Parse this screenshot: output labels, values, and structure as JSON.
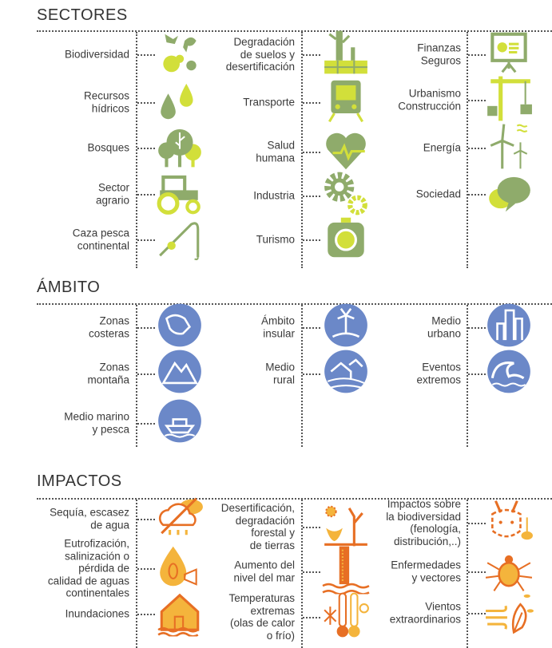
{
  "colors": {
    "green": "#8fab6b",
    "lime": "#d2df3a",
    "blue": "#6b88c8",
    "orange": "#e76f24",
    "yellow": "#f4b43c"
  },
  "sections": [
    {
      "title": "SECTORES",
      "items": [
        {
          "label": "Biodiversidad",
          "icon": "animals-icon"
        },
        {
          "label": "Recursos\nhídricos",
          "icon": "water-drops-icon"
        },
        {
          "label": "Bosques",
          "icon": "trees-icon"
        },
        {
          "label": "Sector\nagrario",
          "icon": "tractor-icon"
        },
        {
          "label": "Caza pesca\ncontinental",
          "icon": "fishing-rod-icon"
        },
        {
          "label": "Degradación\nde suelos y\ndesertificación",
          "icon": "dead-tree-soil-icon"
        },
        {
          "label": "Transporte",
          "icon": "train-icon"
        },
        {
          "label": "Salud\nhumana",
          "icon": "heart-pulse-icon"
        },
        {
          "label": "Industria",
          "icon": "gears-icon"
        },
        {
          "label": "Turismo",
          "icon": "camera-icon"
        },
        {
          "label": "Finanzas\nSeguros",
          "icon": "presentation-board-icon"
        },
        {
          "label": "Urbanismo\nConstrucción",
          "icon": "crane-icon"
        },
        {
          "label": "Energía",
          "icon": "wind-turbines-icon"
        },
        {
          "label": "Sociedad",
          "icon": "speech-bubbles-icon"
        }
      ]
    },
    {
      "title": "ÁMBITO",
      "items": [
        {
          "label": "Zonas\ncosteras",
          "icon": "coast-icon"
        },
        {
          "label": "Zonas\nmontaña",
          "icon": "mountain-icon"
        },
        {
          "label": "Medio marino\ny pesca",
          "icon": "ship-icon"
        },
        {
          "label": "Ámbito\ninsular",
          "icon": "island-icon"
        },
        {
          "label": "Medio\nrural",
          "icon": "rural-house-icon"
        },
        {
          "label": "Medio\nurbano",
          "icon": "city-icon"
        },
        {
          "label": "Eventos\nextremos",
          "icon": "wave-icon"
        }
      ]
    },
    {
      "title": "IMPACTOS",
      "items": [
        {
          "label": "Sequía, escasez\nde agua",
          "icon": "no-rain-cloud-icon"
        },
        {
          "label": "Eutrofización,\nsalinización o\npérdida de\ncalidad de aguas\ncontinentales",
          "icon": "polluted-drop-icon"
        },
        {
          "label": "Inundaciones",
          "icon": "flooded-house-icon"
        },
        {
          "label": "Desertificación,\ndegradación\nforestal y\nde tierras",
          "icon": "desert-skull-icon"
        },
        {
          "label": "Aumento del\nnivel del mar",
          "icon": "sea-level-gauge-icon"
        },
        {
          "label": "Temperaturas\nextremas\n(olas de calor\no frío)",
          "icon": "thermometers-icon"
        },
        {
          "label": "Impactos sobre\nla biodiversidad\n(fenología,\ndistribución,..)",
          "icon": "lynx-icon"
        },
        {
          "label": "Enfermedades\ny vectores",
          "icon": "tick-icon"
        },
        {
          "label": "Vientos\nextraordinarios",
          "icon": "wind-tree-icon"
        }
      ]
    }
  ]
}
